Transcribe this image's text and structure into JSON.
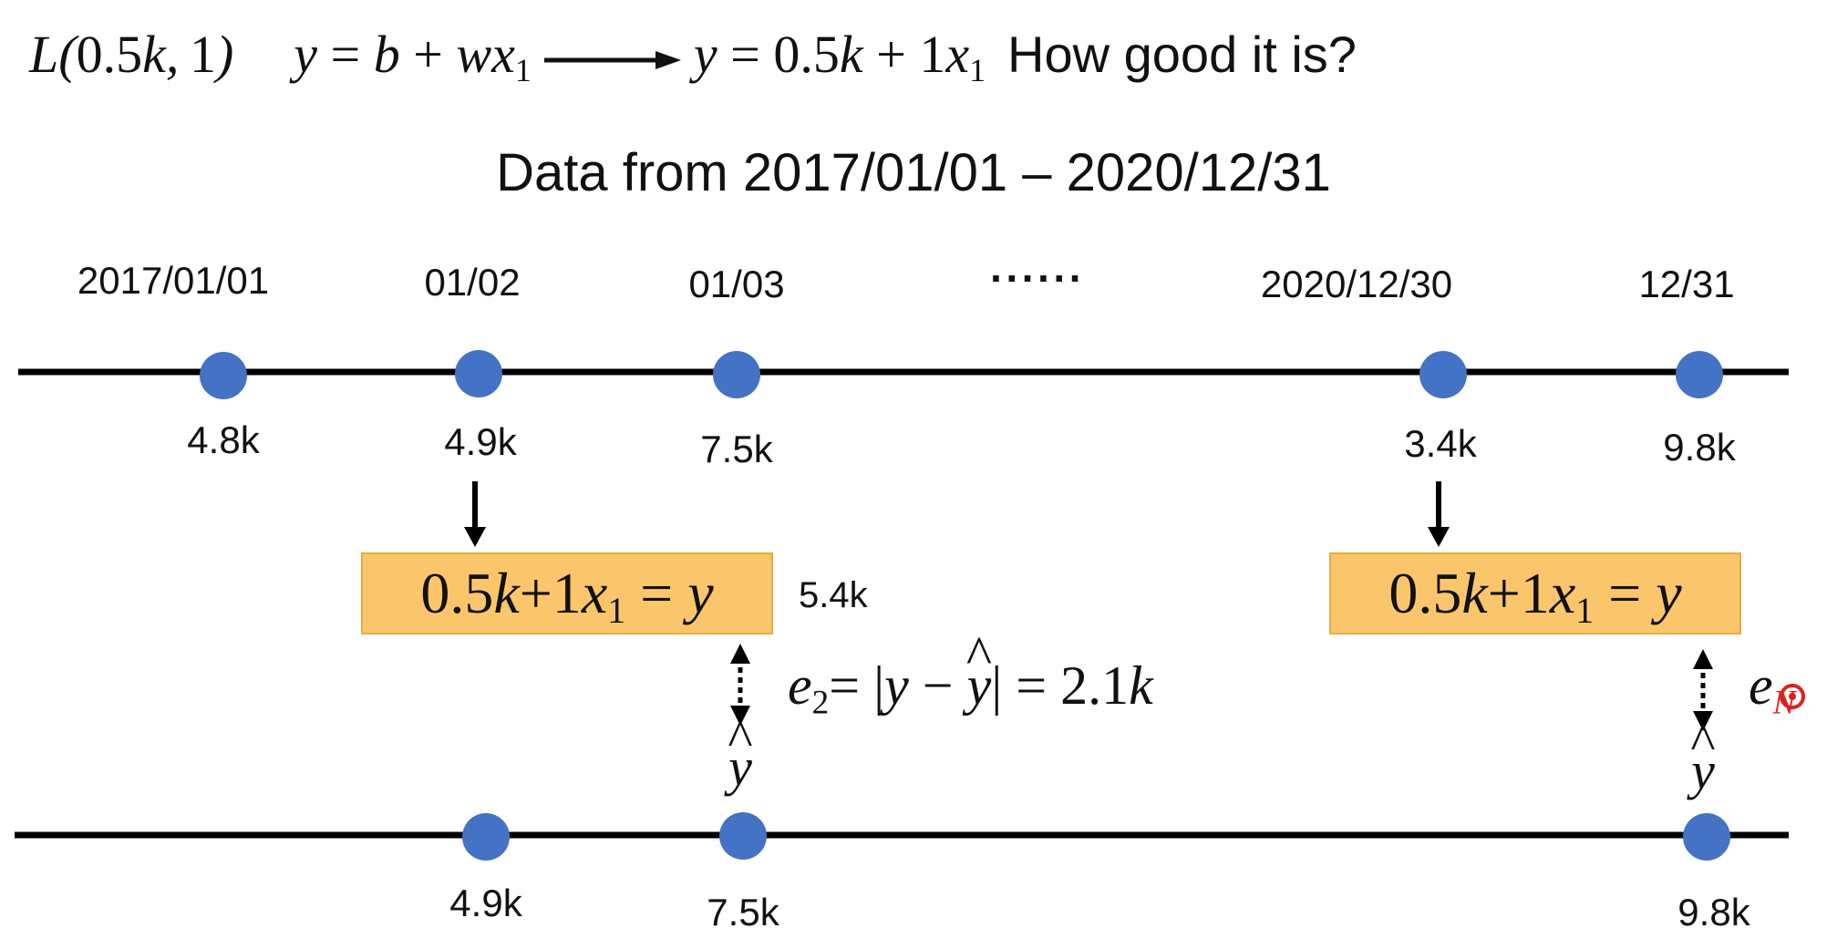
{
  "header": {
    "loss_expr": "L(0.5k, 1)",
    "model_general": "y = b + wx₁",
    "model_specific": "y = 0.5k + 1x₁",
    "question": "How good it is?"
  },
  "subtitle": "Data from 2017/01/01 – 2020/12/31",
  "timeline": {
    "dates": [
      "2017/01/01",
      "01/02",
      "01/03",
      "2020/12/30",
      "12/31"
    ],
    "ellipsis": "······",
    "values": [
      "4.8k",
      "4.9k",
      "7.5k",
      "3.4k",
      "9.8k"
    ]
  },
  "prediction": {
    "box_text": "0.5k+1x₁ = y",
    "predicted_value": "5.4k"
  },
  "error": {
    "e2_label": "e₂",
    "e2_formula": "= |y − ŷ| = 2.1k",
    "eN_label": "e",
    "eN_sub": "N"
  },
  "ground_truth": {
    "yhat_symbol": "ŷ",
    "values": [
      "4.9k",
      "7.5k",
      "9.8k"
    ]
  },
  "colors": {
    "dot": "#4472c4",
    "box_fill": "#fbc66b",
    "box_border": "#e6ac3f",
    "line": "#000000",
    "cursor": "#e02020"
  }
}
